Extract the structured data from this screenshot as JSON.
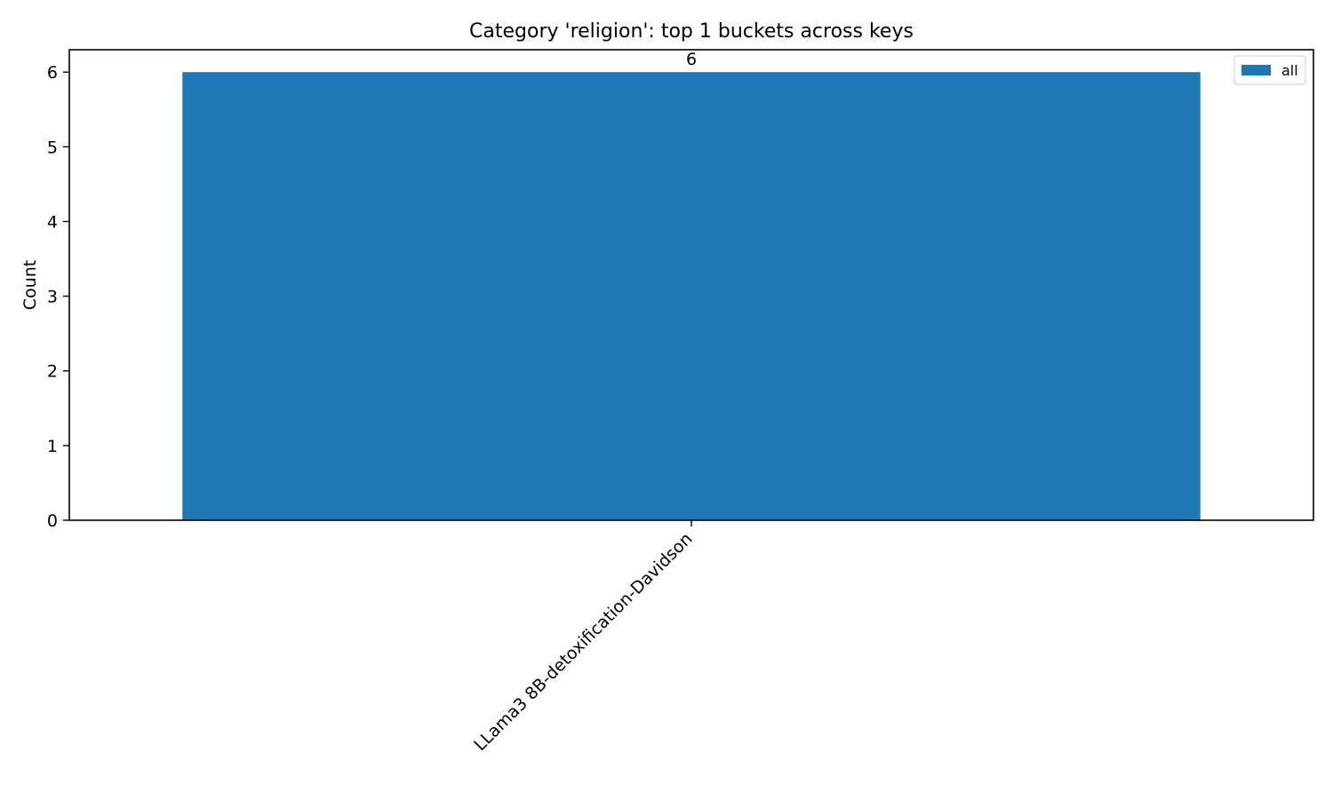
{
  "chart_data": {
    "type": "bar",
    "title": "Category 'religion': top 1 buckets across keys",
    "xlabel": "",
    "ylabel": "Count",
    "categories": [
      "LLama3 8B-detoxification-Davidson"
    ],
    "series": [
      {
        "name": "all",
        "values": [
          6
        ],
        "color": "#1f77b4"
      }
    ],
    "data_labels": [
      "6"
    ],
    "ylim": [
      0,
      6.3
    ],
    "yticks": [
      0,
      1,
      2,
      3,
      4,
      5,
      6
    ],
    "grid": false,
    "legend_position": "top-right"
  }
}
